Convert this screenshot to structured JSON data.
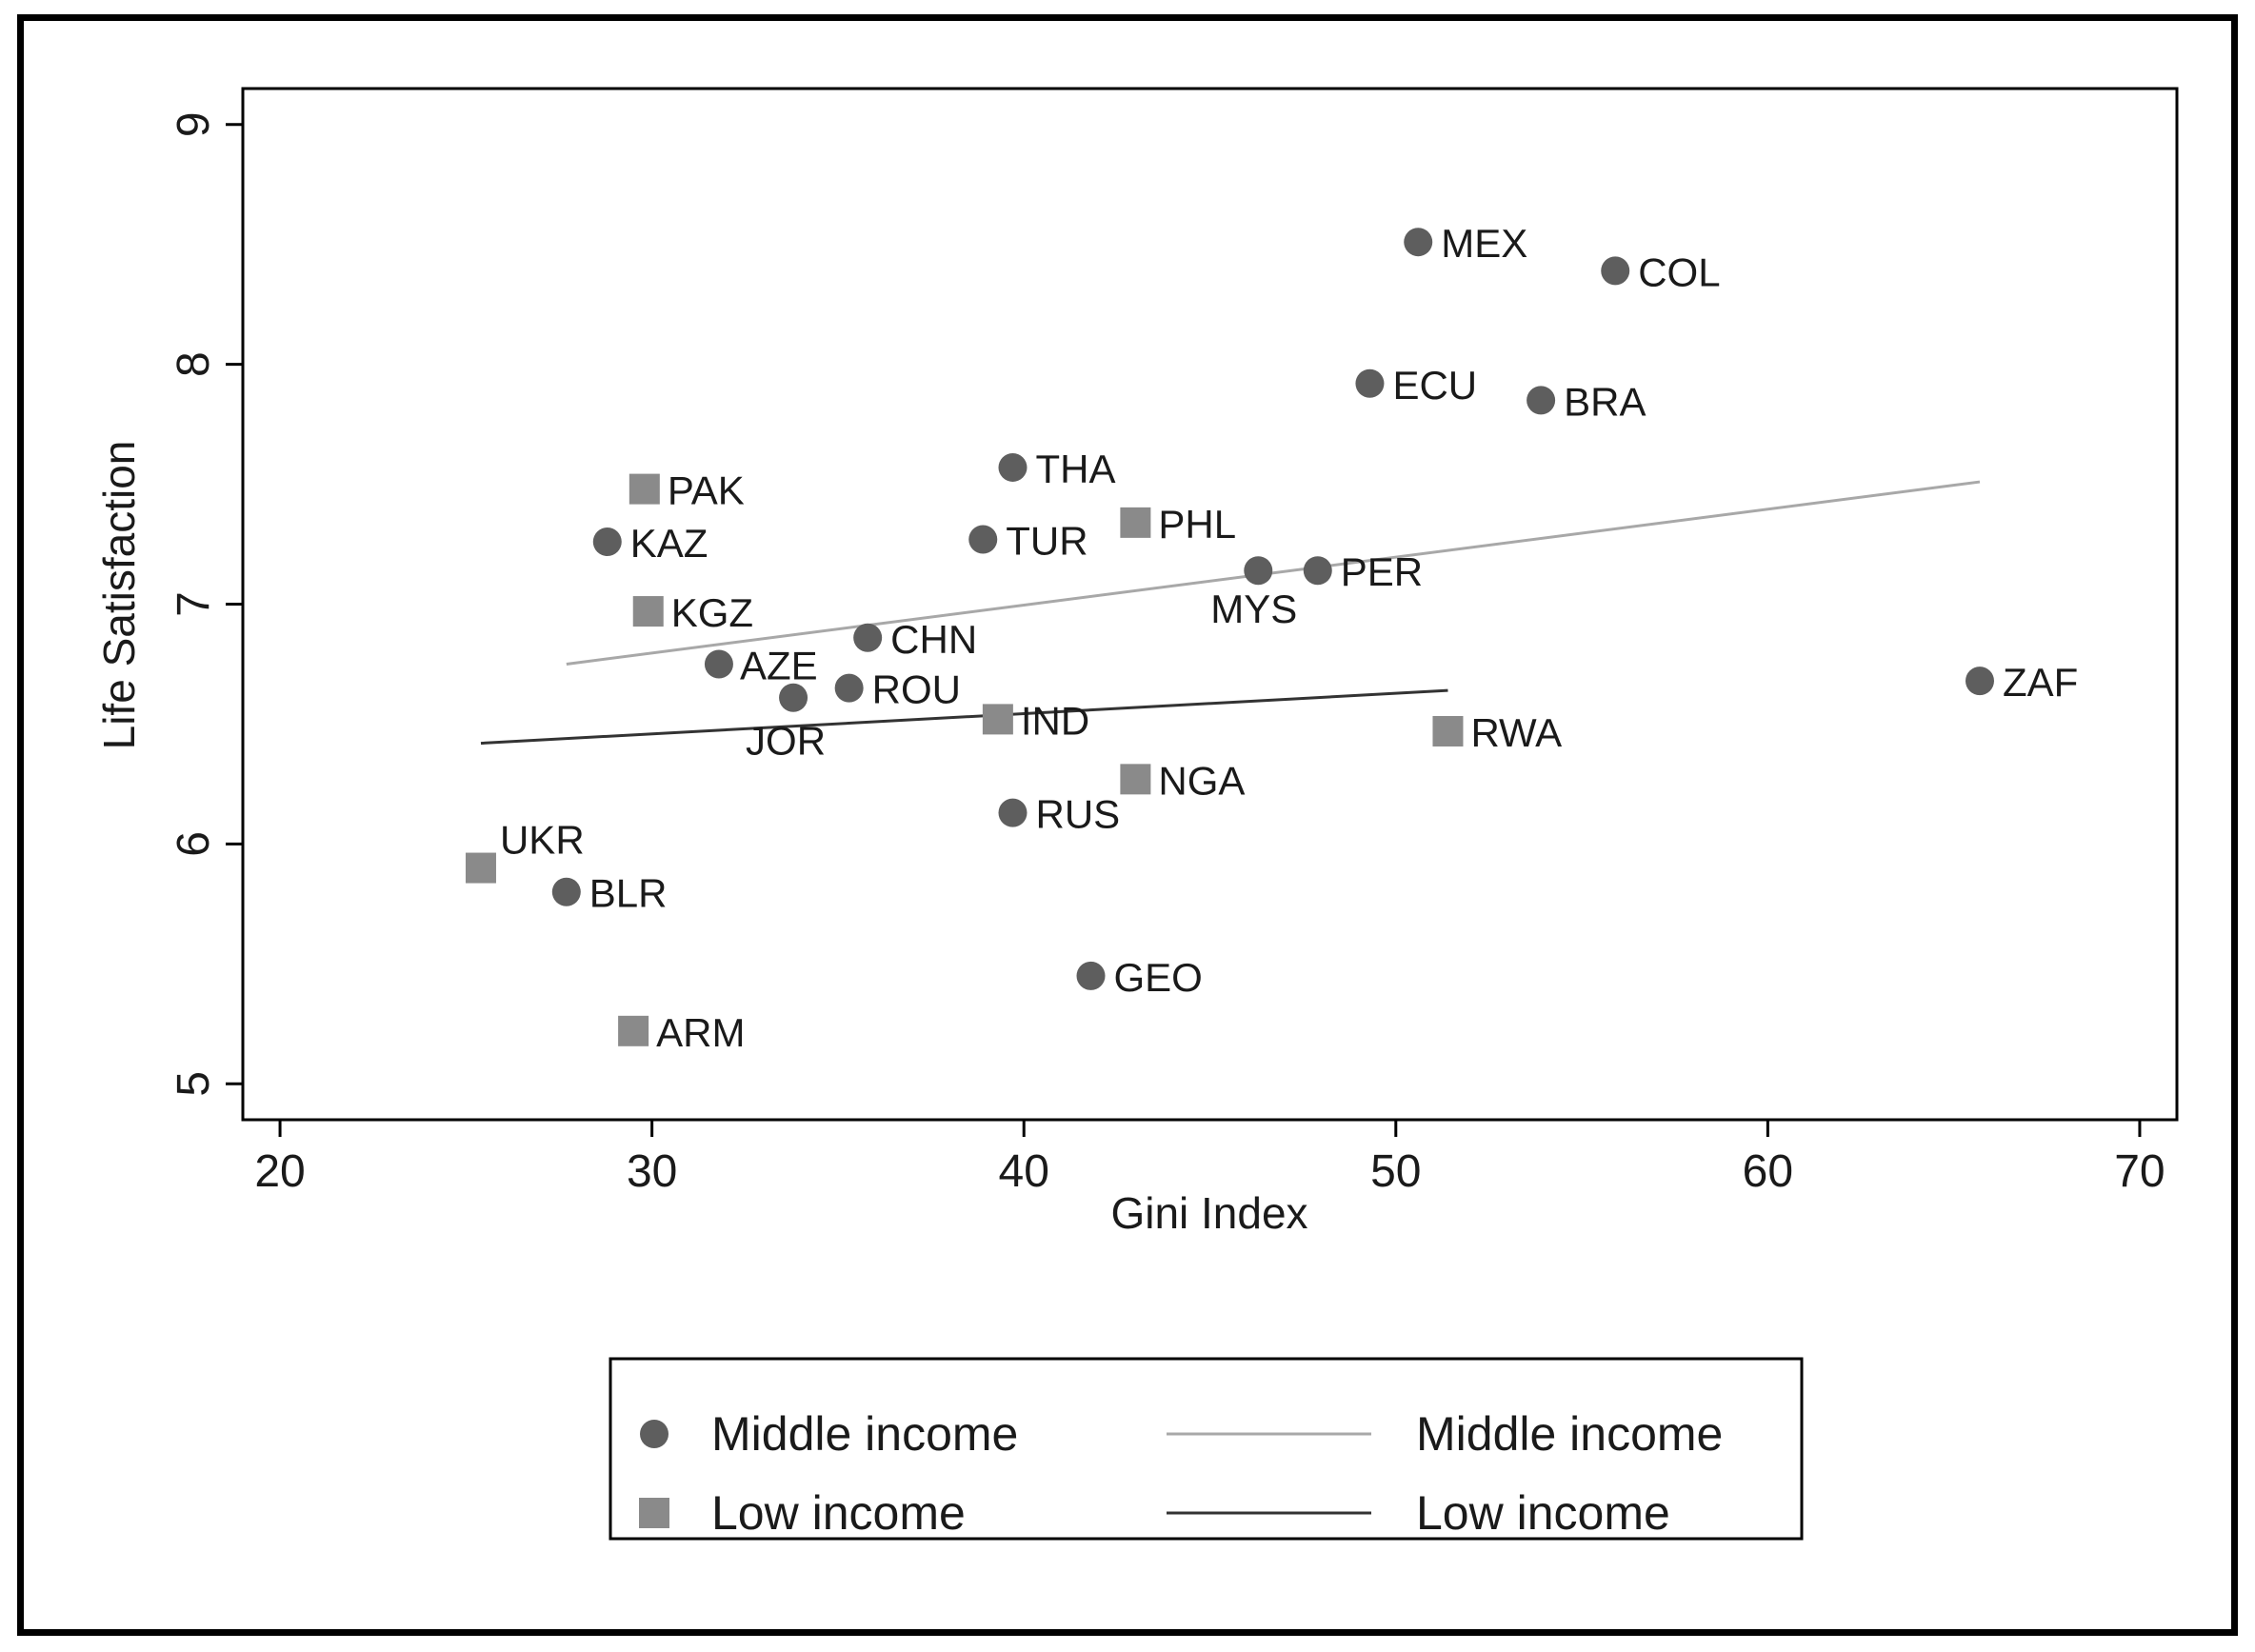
{
  "chart_data": {
    "type": "scatter",
    "xlabel": "Gini Index",
    "ylabel": "Life Satisfaction",
    "xlim": [
      19,
      71
    ],
    "ylim": [
      4.85,
      9.15
    ],
    "xticks": [
      20,
      30,
      40,
      50,
      60,
      70
    ],
    "yticks": [
      5,
      6,
      7,
      8,
      9
    ],
    "grid": false,
    "legend_position": "bottom",
    "series": [
      {
        "name": "Middle income",
        "marker": "circle",
        "color": "#5e5e5e",
        "points": [
          {
            "label": "MEX",
            "x": 50.6,
            "y": 8.51
          },
          {
            "label": "COL",
            "x": 55.9,
            "y": 8.39
          },
          {
            "label": "ECU",
            "x": 49.3,
            "y": 7.92
          },
          {
            "label": "BRA",
            "x": 53.9,
            "y": 7.85
          },
          {
            "label": "THA",
            "x": 39.7,
            "y": 7.57
          },
          {
            "label": "TUR",
            "x": 38.9,
            "y": 7.27
          },
          {
            "label": "KAZ",
            "x": 28.8,
            "y": 7.26
          },
          {
            "label": "MYS",
            "x": 46.3,
            "y": 7.14
          },
          {
            "label": "PER",
            "x": 47.9,
            "y": 7.14
          },
          {
            "label": "CHN",
            "x": 35.8,
            "y": 6.86
          },
          {
            "label": "AZE",
            "x": 31.8,
            "y": 6.75
          },
          {
            "label": "ROU",
            "x": 35.3,
            "y": 6.65
          },
          {
            "label": "JOR",
            "x": 33.8,
            "y": 6.61
          },
          {
            "label": "ZAF",
            "x": 65.7,
            "y": 6.68
          },
          {
            "label": "RUS",
            "x": 39.7,
            "y": 6.13
          },
          {
            "label": "BLR",
            "x": 27.7,
            "y": 5.8
          },
          {
            "label": "GEO",
            "x": 41.8,
            "y": 5.45
          }
        ]
      },
      {
        "name": "Low income",
        "marker": "square",
        "color": "#8a8a8a",
        "points": [
          {
            "label": "PAK",
            "x": 29.8,
            "y": 7.48
          },
          {
            "label": "PHL",
            "x": 43.0,
            "y": 7.34
          },
          {
            "label": "KGZ",
            "x": 29.9,
            "y": 6.97
          },
          {
            "label": "IND",
            "x": 39.3,
            "y": 6.52
          },
          {
            "label": "RWA",
            "x": 51.4,
            "y": 6.47
          },
          {
            "label": "NGA",
            "x": 43.0,
            "y": 6.27
          },
          {
            "label": "UKR",
            "x": 25.4,
            "y": 5.9
          },
          {
            "label": "ARM",
            "x": 29.5,
            "y": 5.22
          }
        ]
      }
    ],
    "fit_lines": [
      {
        "name": "Middle income",
        "color": "#a8a8a8",
        "x": [
          27.7,
          65.7
        ],
        "y": [
          6.75,
          7.51
        ]
      },
      {
        "name": "Low income",
        "color": "#333333",
        "x": [
          25.4,
          51.4
        ],
        "y": [
          6.42,
          6.64
        ]
      }
    ],
    "legend": {
      "entries": [
        {
          "label": "Middle income",
          "kind": "marker",
          "marker": "circle",
          "color": "#5e5e5e"
        },
        {
          "label": "Low income",
          "kind": "marker",
          "marker": "square",
          "color": "#8a8a8a"
        },
        {
          "label": "Middle income",
          "kind": "line",
          "color": "#a8a8a8"
        },
        {
          "label": "Low income",
          "kind": "line",
          "color": "#333333"
        }
      ]
    }
  }
}
